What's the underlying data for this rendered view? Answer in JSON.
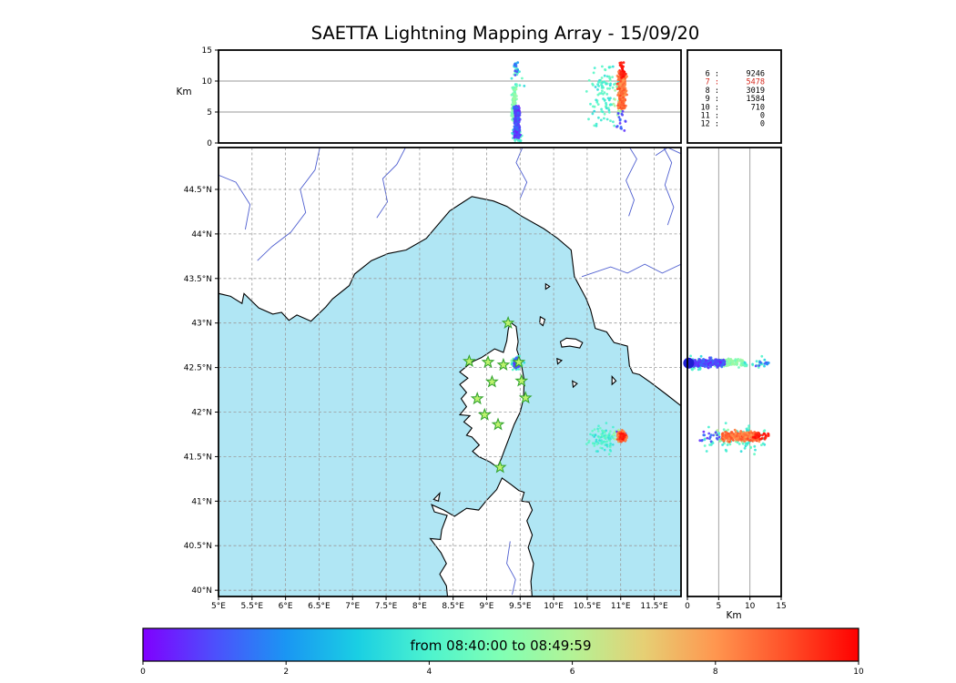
{
  "title": "SAETTA Lightning Mapping Array - 15/09/20",
  "stats_panel": {
    "rows": [
      {
        "id": "6",
        "value": "9246",
        "color": "#000000"
      },
      {
        "id": "7",
        "value": "5478",
        "color": "#d62b20"
      },
      {
        "id": "8",
        "value": "3019",
        "color": "#000000"
      },
      {
        "id": "9",
        "value": "1584",
        "color": "#000000"
      },
      {
        "id": "10",
        "value": "710",
        "color": "#000000"
      },
      {
        "id": "11",
        "value": "0",
        "color": "#000000"
      },
      {
        "id": "12",
        "value": "0",
        "color": "#000000"
      }
    ]
  },
  "alt_axis": {
    "label": "Km",
    "ticks": [
      0,
      5,
      10,
      15
    ],
    "range": [
      0,
      15
    ],
    "gridlines": [
      5,
      10
    ]
  },
  "dist_axis": {
    "label": "Km",
    "ticks": [
      0,
      5,
      10,
      15
    ],
    "range": [
      0,
      15
    ],
    "gridlines": [
      5,
      10
    ]
  },
  "map": {
    "lon_range": [
      5.0,
      11.9
    ],
    "lat_range": [
      39.93,
      44.97
    ],
    "sea_color": "#b0e6f4",
    "land_color": "#ffffff",
    "coast_color": "#000000",
    "river_color": "#4f5fd0",
    "grid_color": "#9a9a9a",
    "lon_ticks": [
      {
        "v": 5.0,
        "label": "5°E"
      },
      {
        "v": 5.5,
        "label": "5.5°E"
      },
      {
        "v": 6.0,
        "label": "6°E"
      },
      {
        "v": 6.5,
        "label": "6.5°E"
      },
      {
        "v": 7.0,
        "label": "7°E"
      },
      {
        "v": 7.5,
        "label": "7.5°E"
      },
      {
        "v": 8.0,
        "label": "8°E"
      },
      {
        "v": 8.5,
        "label": "8.5°E"
      },
      {
        "v": 9.0,
        "label": "9°E"
      },
      {
        "v": 9.5,
        "label": "9.5°E"
      },
      {
        "v": 10.0,
        "label": "10°E"
      },
      {
        "v": 10.5,
        "label": "10.5°E"
      },
      {
        "v": 11.0,
        "label": "11°E"
      },
      {
        "v": 11.5,
        "label": "11.5°E"
      }
    ],
    "lat_ticks": [
      {
        "v": 40.0,
        "label": "40°N"
      },
      {
        "v": 40.5,
        "label": "40.5°N"
      },
      {
        "v": 41.0,
        "label": "41°N"
      },
      {
        "v": 41.5,
        "label": "41.5°N"
      },
      {
        "v": 42.0,
        "label": "42°N"
      },
      {
        "v": 42.5,
        "label": "42.5°N"
      },
      {
        "v": 43.0,
        "label": "43°N"
      },
      {
        "v": 43.5,
        "label": "43.5°N"
      },
      {
        "v": 44.0,
        "label": "44°N"
      },
      {
        "v": 44.5,
        "label": "44.5°N"
      }
    ],
    "coastlines": {
      "mainland": [
        [
          4.9,
          43.35
        ],
        [
          5.18,
          43.3
        ],
        [
          5.35,
          43.22
        ],
        [
          5.38,
          43.33
        ],
        [
          5.6,
          43.17
        ],
        [
          5.81,
          43.1
        ],
        [
          5.94,
          43.12
        ],
        [
          6.05,
          43.03
        ],
        [
          6.17,
          43.09
        ],
        [
          6.38,
          43.02
        ],
        [
          6.6,
          43.18
        ],
        [
          6.7,
          43.27
        ],
        [
          6.95,
          43.42
        ],
        [
          7.03,
          43.55
        ],
        [
          7.28,
          43.7
        ],
        [
          7.53,
          43.78
        ],
        [
          7.8,
          43.82
        ],
        [
          8.1,
          43.95
        ],
        [
          8.45,
          44.26
        ],
        [
          8.78,
          44.42
        ],
        [
          9.1,
          44.37
        ],
        [
          9.3,
          44.31
        ],
        [
          9.52,
          44.2
        ],
        [
          9.85,
          44.06
        ],
        [
          10.06,
          43.95
        ],
        [
          10.26,
          43.82
        ],
        [
          10.31,
          43.52
        ],
        [
          10.48,
          43.28
        ],
        [
          10.55,
          43.15
        ],
        [
          10.62,
          42.94
        ],
        [
          10.79,
          42.9
        ],
        [
          10.9,
          42.78
        ],
        [
          11.1,
          42.74
        ],
        [
          11.13,
          42.52
        ],
        [
          11.18,
          42.44
        ],
        [
          11.28,
          42.42
        ],
        [
          11.45,
          42.33
        ],
        [
          11.68,
          42.2
        ],
        [
          11.95,
          42.04
        ],
        [
          11.95,
          45.1
        ],
        [
          4.9,
          45.1
        ]
      ],
      "corsica": [
        [
          9.35,
          43.01
        ],
        [
          9.44,
          42.96
        ],
        [
          9.47,
          42.79
        ],
        [
          9.45,
          42.7
        ],
        [
          9.51,
          42.57
        ],
        [
          9.56,
          42.36
        ],
        [
          9.55,
          42.15
        ],
        [
          9.5,
          42.0
        ],
        [
          9.41,
          41.86
        ],
        [
          9.33,
          41.7
        ],
        [
          9.28,
          41.6
        ],
        [
          9.22,
          41.48
        ],
        [
          9.16,
          41.38
        ],
        [
          9.05,
          41.44
        ],
        [
          8.88,
          41.5
        ],
        [
          8.79,
          41.56
        ],
        [
          8.89,
          41.63
        ],
        [
          8.78,
          41.72
        ],
        [
          8.7,
          41.74
        ],
        [
          8.78,
          41.82
        ],
        [
          8.66,
          41.89
        ],
        [
          8.75,
          41.96
        ],
        [
          8.6,
          41.97
        ],
        [
          8.7,
          42.06
        ],
        [
          8.62,
          42.15
        ],
        [
          8.7,
          42.22
        ],
        [
          8.6,
          42.31
        ],
        [
          8.72,
          42.38
        ],
        [
          8.6,
          42.45
        ],
        [
          8.71,
          42.52
        ],
        [
          8.8,
          42.57
        ],
        [
          8.92,
          42.61
        ],
        [
          9.0,
          42.65
        ],
        [
          9.12,
          42.71
        ],
        [
          9.25,
          42.67
        ],
        [
          9.3,
          42.8
        ],
        [
          9.32,
          42.92
        ]
      ],
      "sardinia": [
        [
          8.42,
          39.9
        ],
        [
          8.4,
          40.05
        ],
        [
          8.3,
          40.18
        ],
        [
          8.4,
          40.3
        ],
        [
          8.32,
          40.42
        ],
        [
          8.16,
          40.58
        ],
        [
          8.31,
          40.57
        ],
        [
          8.33,
          40.68
        ],
        [
          8.41,
          40.84
        ],
        [
          8.22,
          40.88
        ],
        [
          8.18,
          40.96
        ],
        [
          8.36,
          40.9
        ],
        [
          8.52,
          40.83
        ],
        [
          8.7,
          40.92
        ],
        [
          8.88,
          40.9
        ],
        [
          9.0,
          41.01
        ],
        [
          9.15,
          41.13
        ],
        [
          9.23,
          41.26
        ],
        [
          9.36,
          41.19
        ],
        [
          9.48,
          41.12
        ],
        [
          9.56,
          41.1
        ],
        [
          9.52,
          41.0
        ],
        [
          9.63,
          40.99
        ],
        [
          9.68,
          40.9
        ],
        [
          9.6,
          40.78
        ],
        [
          9.68,
          40.62
        ],
        [
          9.62,
          40.48
        ],
        [
          9.7,
          40.3
        ],
        [
          9.66,
          40.1
        ],
        [
          9.68,
          39.9
        ]
      ],
      "islands": [
        [
          [
            10.1,
            42.79
          ],
          [
            10.19,
            42.83
          ],
          [
            10.33,
            42.82
          ],
          [
            10.43,
            42.78
          ],
          [
            10.39,
            42.72
          ],
          [
            10.24,
            42.74
          ],
          [
            10.12,
            42.73
          ]
        ],
        [
          [
            9.8,
            43.07
          ],
          [
            9.87,
            43.04
          ],
          [
            9.84,
            42.97
          ],
          [
            9.79,
            43.0
          ]
        ],
        [
          [
            10.05,
            42.6
          ],
          [
            10.12,
            42.58
          ],
          [
            10.06,
            42.54
          ]
        ],
        [
          [
            10.28,
            42.35
          ],
          [
            10.35,
            42.32
          ],
          [
            10.29,
            42.28
          ]
        ],
        [
          [
            10.87,
            42.4
          ],
          [
            10.93,
            42.35
          ],
          [
            10.87,
            42.31
          ]
        ],
        [
          [
            8.21,
            41.02
          ],
          [
            8.3,
            41.09
          ],
          [
            8.28,
            41.0
          ]
        ],
        [
          [
            9.88,
            43.44
          ],
          [
            9.94,
            43.41
          ],
          [
            9.88,
            43.38
          ]
        ]
      ]
    },
    "rivers": [
      [
        [
          7.81,
          45.0
        ],
        [
          7.66,
          44.78
        ],
        [
          7.45,
          44.62
        ],
        [
          7.52,
          44.36
        ],
        [
          7.36,
          44.18
        ]
      ],
      [
        [
          6.52,
          45.0
        ],
        [
          6.44,
          44.72
        ],
        [
          6.22,
          44.5
        ],
        [
          6.3,
          44.24
        ],
        [
          6.08,
          44.02
        ],
        [
          5.8,
          43.86
        ],
        [
          5.58,
          43.7
        ]
      ],
      [
        [
          5.0,
          44.66
        ],
        [
          5.26,
          44.58
        ],
        [
          5.47,
          44.33
        ],
        [
          5.4,
          44.05
        ]
      ],
      [
        [
          9.55,
          45.0
        ],
        [
          9.44,
          44.8
        ],
        [
          9.6,
          44.58
        ],
        [
          9.5,
          44.4
        ]
      ],
      [
        [
          11.9,
          43.66
        ],
        [
          11.62,
          43.56
        ],
        [
          11.36,
          43.66
        ],
        [
          11.1,
          43.56
        ],
        [
          10.85,
          43.63
        ],
        [
          10.42,
          43.52
        ]
      ],
      [
        [
          11.11,
          45.0
        ],
        [
          11.24,
          44.84
        ],
        [
          11.08,
          44.6
        ],
        [
          11.2,
          44.38
        ],
        [
          11.12,
          44.2
        ]
      ],
      [
        [
          11.62,
          45.0
        ],
        [
          11.76,
          44.8
        ],
        [
          11.66,
          44.55
        ],
        [
          11.79,
          44.3
        ],
        [
          11.7,
          44.1
        ]
      ],
      [
        [
          11.9,
          44.9
        ],
        [
          11.7,
          44.97
        ],
        [
          11.52,
          44.88
        ]
      ],
      [
        [
          9.35,
          40.55
        ],
        [
          9.3,
          40.3
        ],
        [
          9.43,
          40.12
        ],
        [
          9.38,
          39.95
        ]
      ]
    ],
    "stations": {
      "marker": "star",
      "color_fill": "#bdf26e",
      "color_edge": "#35a52f",
      "positions": [
        [
          9.32,
          43.0
        ],
        [
          8.74,
          42.57
        ],
        [
          9.02,
          42.56
        ],
        [
          9.25,
          42.53
        ],
        [
          9.48,
          42.56
        ],
        [
          9.08,
          42.34
        ],
        [
          9.52,
          42.35
        ],
        [
          8.86,
          42.15
        ],
        [
          9.58,
          42.16
        ],
        [
          8.97,
          41.97
        ],
        [
          9.17,
          41.86
        ],
        [
          9.2,
          41.38
        ]
      ]
    }
  },
  "chart_data": {
    "type": "scatter",
    "title": "SAETTA Lightning Mapping Array - 15/09/20",
    "time_window": {
      "start": "08:40:00",
      "end": "08:49:59"
    },
    "panels": {
      "top": {
        "x": "longitude",
        "y": "altitude_km",
        "y_range": [
          0,
          15
        ]
      },
      "map": {
        "x": "longitude",
        "y": "latitude",
        "x_range": [
          5.0,
          11.9
        ],
        "y_range": [
          39.93,
          44.97
        ]
      },
      "right": {
        "x": "altitude_km",
        "y": "latitude",
        "x_range": [
          0,
          15
        ]
      }
    },
    "source_counts": [
      [
        "6",
        9246
      ],
      [
        "7",
        5478
      ],
      [
        "8",
        3019
      ],
      [
        "9",
        1584
      ],
      [
        "10",
        710
      ],
      [
        "11",
        0
      ],
      [
        "12",
        0
      ]
    ],
    "clusters": [
      {
        "name": "corsica-cell-mid-green",
        "n": 190,
        "lon": [
          9.37,
          9.45
        ],
        "lat": [
          42.5,
          42.61
        ],
        "alt_km": [
          3.5,
          9.0
        ],
        "time_value": [
          4.6,
          5.8
        ]
      },
      {
        "name": "corsica-cell-cyan-low",
        "n": 45,
        "lon": [
          9.34,
          9.56
        ],
        "lat": [
          42.45,
          42.63
        ],
        "alt_km": [
          0.0,
          2.2
        ],
        "time_value": [
          3.2,
          4.3
        ]
      },
      {
        "name": "corsica-cell-cyan-high",
        "n": 20,
        "lon": [
          9.31,
          9.6
        ],
        "lat": [
          42.44,
          42.66
        ],
        "alt_km": [
          9.0,
          13.0
        ],
        "time_value": [
          3.0,
          4.6
        ]
      },
      {
        "name": "corsica-cell-purple-high",
        "n": 10,
        "lon": [
          9.35,
          9.5
        ],
        "lat": [
          42.5,
          42.61
        ],
        "alt_km": [
          10.5,
          14.0
        ],
        "time_value": [
          0.6,
          2.0
        ]
      },
      {
        "name": "corsica-cell-early-purple",
        "n": 300,
        "lon": [
          9.4,
          9.51
        ],
        "lat": [
          42.49,
          42.61
        ],
        "alt_km": [
          0.8,
          6.0
        ],
        "time_value": [
          0.3,
          1.5
        ]
      },
      {
        "name": "sea-cell-cyan",
        "n": 100,
        "lon": [
          10.45,
          11.06
        ],
        "lat": [
          41.5,
          41.9
        ],
        "alt_km": [
          2.5,
          12.5
        ],
        "time_value": [
          3.2,
          4.6
        ]
      },
      {
        "name": "sea-cell-green",
        "n": 22,
        "lon": [
          10.86,
          11.08
        ],
        "lat": [
          41.62,
          41.82
        ],
        "alt_km": [
          4.5,
          9.5
        ],
        "time_value": [
          5.0,
          6.2
        ]
      },
      {
        "name": "sea-cell-purple",
        "n": 18,
        "lon": [
          10.92,
          11.1
        ],
        "lat": [
          41.62,
          41.8
        ],
        "alt_km": [
          2.0,
          5.5
        ],
        "time_value": [
          0.5,
          1.6
        ]
      },
      {
        "name": "sea-cell-late-orange",
        "n": 330,
        "lon": [
          10.94,
          11.1
        ],
        "lat": [
          41.66,
          41.8
        ],
        "alt_km": [
          5.5,
          11.5
        ],
        "time_value": [
          7.9,
          9.3
        ]
      },
      {
        "name": "sea-cell-late-red",
        "n": 36,
        "lon": [
          10.97,
          11.08
        ],
        "lat": [
          41.68,
          41.79
        ],
        "alt_km": [
          10.5,
          13.0
        ],
        "time_value": [
          9.3,
          10.0
        ]
      }
    ],
    "low_level_marker": {
      "lat": 42.55,
      "alt_km": 0.2,
      "color": "#1f1fd0",
      "radius_px": 6
    }
  },
  "colorbar": {
    "label": "from 08:40:00 to 08:49:59",
    "range": [
      0,
      10
    ],
    "ticks": [
      {
        "v": 0,
        "label": "0"
      },
      {
        "v": 2,
        "label": "2"
      },
      {
        "v": 4,
        "label": "4"
      },
      {
        "v": 6,
        "label": "6"
      },
      {
        "v": 8,
        "label": "8"
      },
      {
        "v": 10,
        "label": "10"
      }
    ],
    "gradient": [
      [
        0.0,
        "#8000ff"
      ],
      [
        0.1,
        "#4d4ffc"
      ],
      [
        0.2,
        "#1a96f3"
      ],
      [
        0.3,
        "#1acfe3"
      ],
      [
        0.4,
        "#4df3ce"
      ],
      [
        0.5,
        "#80ffb4"
      ],
      [
        0.6,
        "#b3f396"
      ],
      [
        0.7,
        "#e6cf74"
      ],
      [
        0.8,
        "#ff964f"
      ],
      [
        0.9,
        "#ff4f28"
      ],
      [
        1.0,
        "#ff0000"
      ]
    ]
  }
}
